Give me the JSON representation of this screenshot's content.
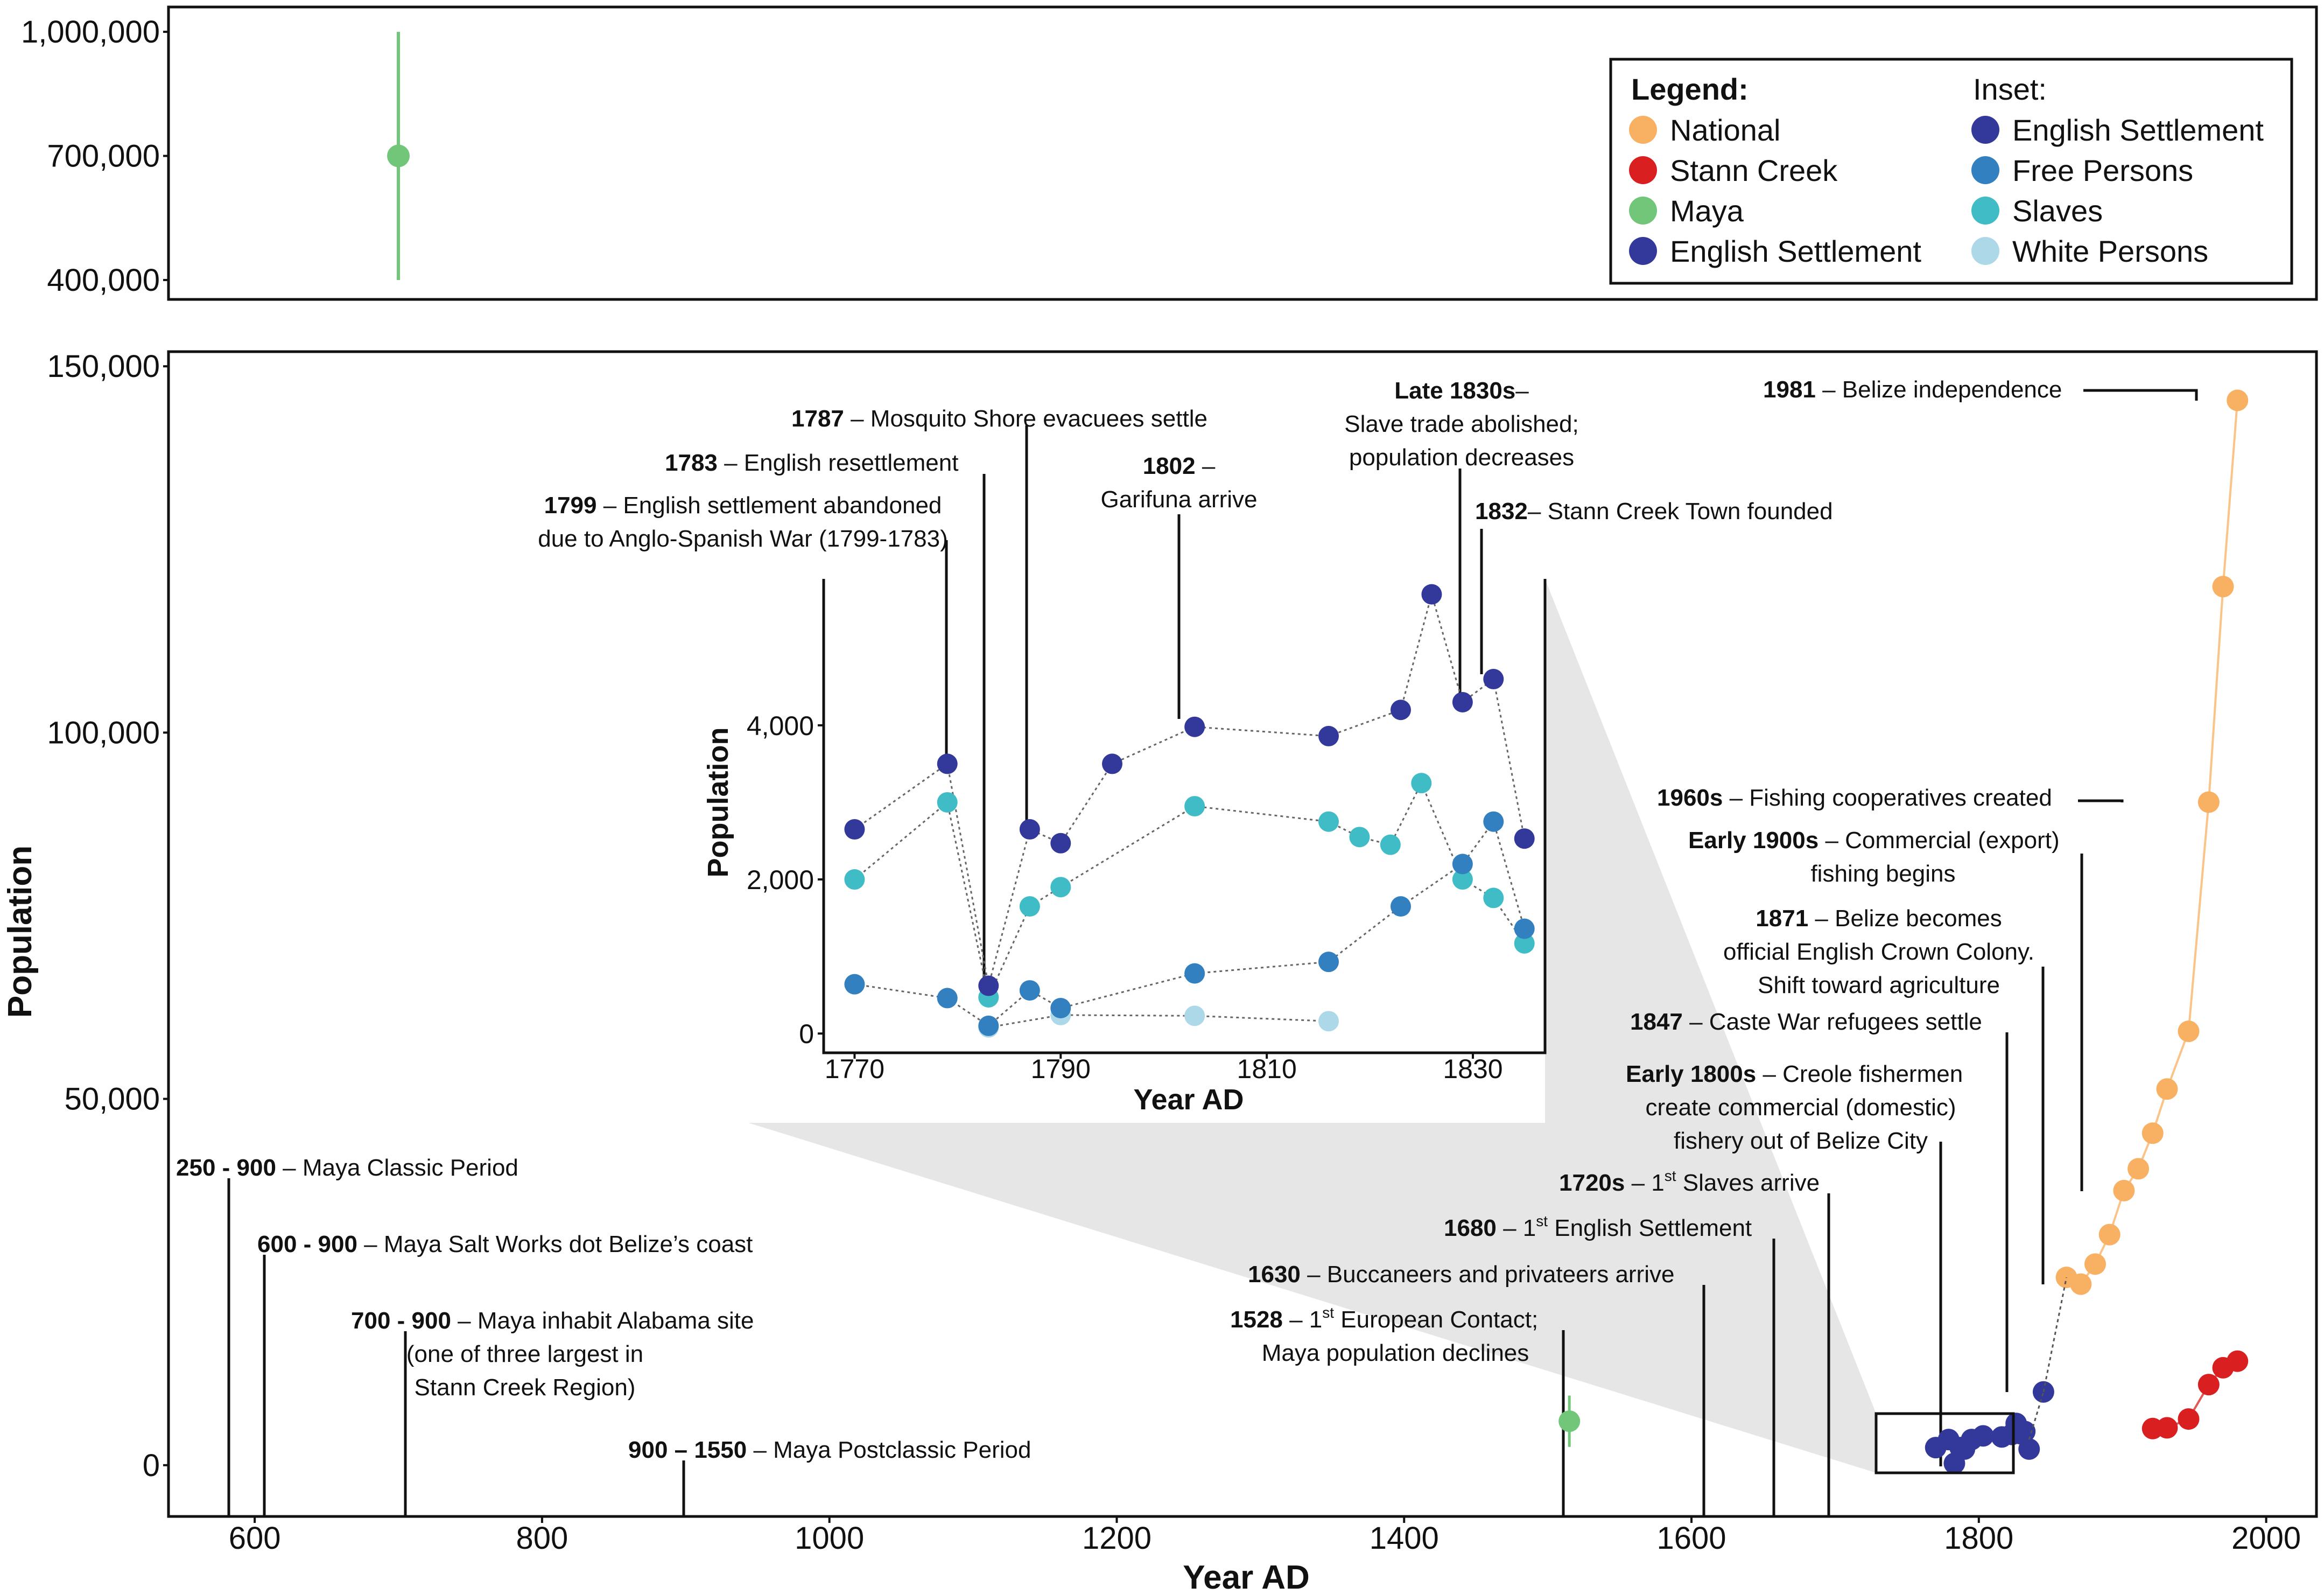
{
  "chart_data": [
    {
      "type": "scatter",
      "panel": "top",
      "yticks": [
        400000,
        700000,
        1000000
      ],
      "ytick_labels": [
        "400,000",
        "700,000",
        "1,000,000"
      ],
      "ylim": [
        370000,
        1060000
      ],
      "series": [
        {
          "name": "Maya",
          "x": [
            700
          ],
          "y": [
            700000
          ],
          "err_low": [
            400000
          ],
          "err_high": [
            1000000
          ]
        }
      ],
      "legend": {
        "title": "Legend:",
        "items": [
          "National",
          "Stann Creek",
          "Maya",
          "English Settlement"
        ],
        "inset_title": "Inset:",
        "inset_items": [
          "English Settlement",
          "Free Persons",
          "Slaves",
          "White Persons"
        ]
      },
      "colors": {
        "National": "#f8b062",
        "Stann Creek": "#d91f1f",
        "Maya": "#71c67a",
        "English Settlement": "#33399a",
        "Free Persons": "#3380c0",
        "Slaves": "#3fbcc6",
        "White Persons": "#acd8e8"
      }
    },
    {
      "type": "scatter",
      "panel": "main",
      "xlabel": "Year AD",
      "ylabel": "Population",
      "xlim": [
        540,
        2035
      ],
      "ylim": [
        -7000,
        152000
      ],
      "xticks": [
        600,
        800,
        1000,
        1200,
        1400,
        1600,
        1800,
        2000
      ],
      "xtick_labels": [
        "600",
        "800",
        "1000",
        "1200",
        "1400",
        "1600",
        "1800",
        "2000"
      ],
      "yticks": [
        0,
        50000,
        100000,
        150000
      ],
      "ytick_labels": [
        "0",
        "50,000",
        "100,000",
        "150,000"
      ],
      "series": [
        {
          "name": "National",
          "x": [
            1861,
            1871,
            1881,
            1891,
            1901,
            1911,
            1921,
            1931,
            1946,
            1960,
            1970,
            1980
          ],
          "y": [
            25635,
            24710,
            27452,
            31471,
            37479,
            40458,
            45317,
            51347,
            59220,
            90505,
            119934,
            145353
          ]
        },
        {
          "name": "Stann Creek",
          "x": [
            1921,
            1931,
            1946,
            1960,
            1970,
            1980
          ],
          "y": [
            5000,
            5100,
            6300,
            11000,
            13300,
            14200
          ]
        },
        {
          "name": "Maya",
          "x": [
            1515
          ],
          "y": [
            6000
          ],
          "err_low": [
            2500
          ],
          "err_high": [
            9500
          ]
        },
        {
          "name": "English Settlement",
          "x": [
            1845
          ],
          "y": [
            10000
          ]
        },
        {
          "name": "English Settlement (inset cluster)",
          "x": [
            1770,
            1779,
            1783,
            1787,
            1790,
            1795,
            1803,
            1816,
            1823,
            1826,
            1829,
            1832,
            1835
          ],
          "y": [
            2400,
            3500,
            250,
            2400,
            2200,
            3500,
            4000,
            3850,
            4200,
            5700,
            4300,
            4600,
            2200
          ]
        }
      ],
      "inset": {
        "xlabel": "Year AD",
        "ylabel": "Population",
        "xlim": [
          1767,
          1837
        ],
        "ylim": [
          -250,
          5900
        ],
        "xticks": [
          1770,
          1790,
          1810,
          1830
        ],
        "xtick_labels": [
          "1770",
          "1790",
          "1810",
          "1830"
        ],
        "yticks": [
          0,
          2000,
          4000
        ],
        "ytick_labels": [
          "0",
          "2,000",
          "4,000"
        ],
        "series": [
          {
            "name": "English Settlement",
            "x": [
              1770,
              1779,
              1783,
              1787,
              1790,
              1795,
              1803,
              1816,
              1823,
              1826,
              1829,
              1832,
              1835
            ],
            "y": [
              2650,
              3500,
              620,
              2650,
              2470,
              3500,
              3980,
              3860,
              4200,
              5700,
              4300,
              4600,
              2530
            ]
          },
          {
            "name": "Free Persons",
            "x": [
              1770,
              1779,
              1783,
              1787,
              1790,
              1803,
              1816,
              1823,
              1829,
              1832,
              1835
            ],
            "y": [
              640,
              460,
              100,
              560,
              330,
              780,
              930,
              1650,
              2200,
              2750,
              1360
            ]
          },
          {
            "name": "Slaves",
            "x": [
              1770,
              1779,
              1783,
              1787,
              1790,
              1803,
              1816,
              1819,
              1822,
              1825,
              1829,
              1832,
              1835
            ],
            "y": [
              2000,
              3000,
              470,
              1650,
              1900,
              2950,
              2750,
              2550,
              2450,
              3250,
              2000,
              1760,
              1170
            ]
          },
          {
            "name": "White Persons",
            "x": [
              1783,
              1790,
              1803,
              1816
            ],
            "y": [
              80,
              240,
              230,
              160
            ]
          }
        ]
      },
      "annotations": [
        {
          "year": "250 - 900",
          "text": " – Maya Classic Period"
        },
        {
          "year": "600 - 900",
          "text": " – Maya Salt Works dot Belize’s coast"
        },
        {
          "year": "700 - 900",
          "text": " – Maya inhabit Alabama site",
          "line2": "(one of three largest in",
          "line3": "Stann Creek Region)"
        },
        {
          "year": "900 – 1550",
          "text": " – Maya Postclassic Period"
        },
        {
          "year": "1528",
          "text": " – 1",
          "sup": "st",
          "text2": " European Contact;",
          "line2": "Maya population declines"
        },
        {
          "year": "1630",
          "text": " – Buccaneers and privateers arrive"
        },
        {
          "year": "1680",
          "text": " – 1",
          "sup": "st",
          "text2": " English Settlement"
        },
        {
          "year": "1720s",
          "text": " – 1",
          "sup": "st",
          "text2": " Slaves arrive"
        },
        {
          "year": "Early 1800s",
          "text": " – Creole fishermen",
          "line2": "create commercial (domestic)",
          "line3": "fishery out of Belize City"
        },
        {
          "year": "1847",
          "text": " – Caste War refugees settle"
        },
        {
          "year": "1871",
          "text": " – Belize becomes",
          "line2": "official English Crown Colony.",
          "line3": "Shift toward agriculture"
        },
        {
          "year": "Early 1900s",
          "text": " – Commercial (export)",
          "line2": "fishing begins"
        },
        {
          "year": "1960s",
          "text": " – Fishing cooperatives created"
        },
        {
          "year": "1981",
          "text": " – Belize independence"
        },
        {
          "year": "1787",
          "text": " – Mosquito Shore evacuees settle"
        },
        {
          "year": "1783",
          "text": " – English resettlement"
        },
        {
          "year": "1799",
          "text": " – English settlement abandoned",
          "line2": "due to Anglo-Spanish War (1799-1783)"
        },
        {
          "year": "1802",
          "text": " –",
          "line2": "Garifuna arrive"
        },
        {
          "year": "Late 1830s",
          "text": "–",
          "line2": "Slave trade abolished;",
          "line3": "population decreases"
        },
        {
          "year": "1832",
          "text": "– Stann Creek Town founded"
        }
      ]
    }
  ]
}
